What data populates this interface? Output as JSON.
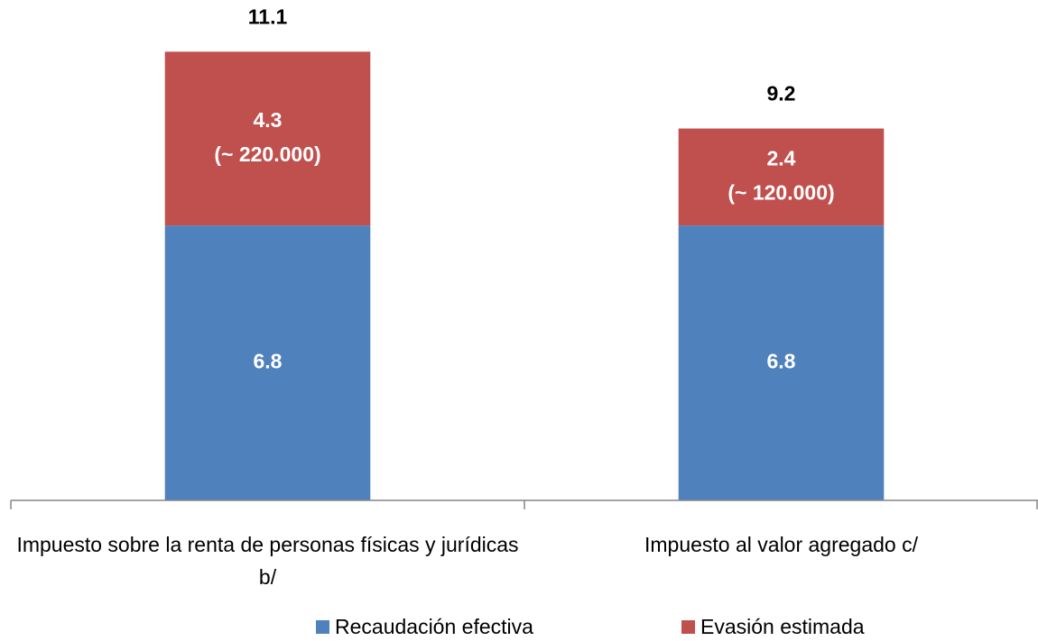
{
  "chart_data": {
    "type": "stacked_bar",
    "categories": [
      "Impuesto sobre la renta de personas físicas y jurídicas b/",
      "Impuesto al valor agregado c/"
    ],
    "series": [
      {
        "name": "Recaudación efectiva",
        "color": "#4f81bd",
        "values": [
          6.8,
          6.8
        ]
      },
      {
        "name": "Evasión estimada",
        "color": "#c0504d",
        "values": [
          4.3,
          2.4
        ],
        "value_notes": [
          "(~ 220.000)",
          "(~ 120.000)"
        ]
      }
    ],
    "totals": [
      11.1,
      9.2
    ],
    "ylim": [
      0,
      12
    ],
    "legend": "bottom"
  }
}
